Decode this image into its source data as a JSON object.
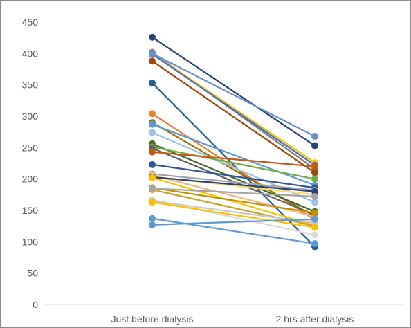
{
  "chart_data": {
    "type": "line",
    "categories": [
      "Just before dialysis",
      "2 hrs after dialysis"
    ],
    "ylim": [
      0,
      450
    ],
    "yticks": [
      0,
      50,
      100,
      150,
      200,
      250,
      300,
      350,
      400,
      450
    ],
    "grid": false,
    "legend": "none",
    "series": [
      {
        "color": "#264478",
        "values": [
          426,
          253
        ]
      },
      {
        "color": "#7F7F7F",
        "values": [
          402,
          216
        ]
      },
      {
        "color": "#FFC000",
        "values": [
          400,
          226
        ]
      },
      {
        "color": "#4472C4",
        "values": [
          399,
          222
        ]
      },
      {
        "color": "#698ED0",
        "values": [
          400,
          268
        ]
      },
      {
        "color": "#9E480E",
        "values": [
          388,
          210
        ]
      },
      {
        "color": "#255E91",
        "values": [
          353,
          92
        ]
      },
      {
        "color": "#ED7D31",
        "values": [
          304,
          135
        ]
      },
      {
        "color": "#997300",
        "values": [
          290,
          140
        ]
      },
      {
        "color": "#5B9BD5",
        "values": [
          287,
          190
        ]
      },
      {
        "color": "#9DC3E6",
        "values": [
          274,
          163
        ]
      },
      {
        "color": "#43682B",
        "values": [
          256,
          148
        ]
      },
      {
        "color": "#70AD47",
        "values": [
          251,
          200
        ]
      },
      {
        "color": "#636363",
        "values": [
          249,
          143
        ]
      },
      {
        "color": "#C55A11",
        "values": [
          243,
          220
        ]
      },
      {
        "color": "#2F5597",
        "values": [
          223,
          186
        ]
      },
      {
        "color": "#A5A5A5",
        "values": [
          208,
          182
        ]
      },
      {
        "color": "#F4B183",
        "values": [
          206,
          140
        ]
      },
      {
        "color": "#FFD966",
        "values": [
          204,
          175
        ]
      },
      {
        "color": "#264478",
        "values": [
          203,
          180
        ]
      },
      {
        "color": "#FFC000",
        "values": [
          202,
          126
        ]
      },
      {
        "color": "#BF9000",
        "values": [
          186,
          146
        ]
      },
      {
        "color": "#C9A227",
        "values": [
          183,
          125
        ]
      },
      {
        "color": "#A5A5A5",
        "values": [
          185,
          172
        ]
      },
      {
        "color": "#DBDBDB",
        "values": [
          167,
          111
        ]
      },
      {
        "color": "#C9C9C9",
        "values": [
          165,
          130
        ]
      },
      {
        "color": "#FFC000",
        "values": [
          163,
          123
        ]
      },
      {
        "color": "#5B9BD5",
        "values": [
          137,
          97
        ]
      },
      {
        "color": "#5B9BD5",
        "values": [
          127,
          136
        ]
      }
    ]
  }
}
